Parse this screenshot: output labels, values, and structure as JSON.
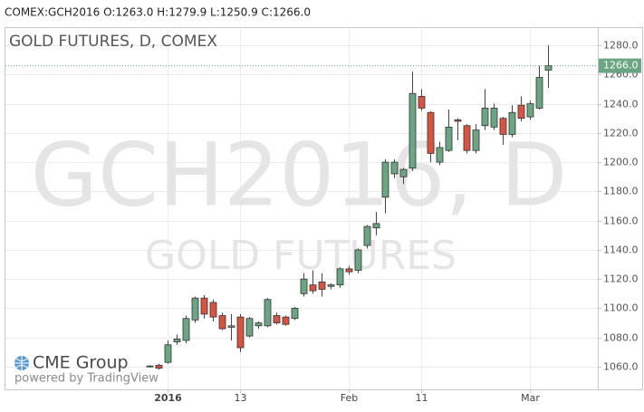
{
  "header": "COMEX:GCH2016 O:1263.0 H:1279.9 L:1250.9 C:1266.0",
  "branding": {
    "logo": "CME Group",
    "powered": "powered by TradingView"
  },
  "chart_data": {
    "type": "candlestick",
    "title": "GOLD FUTURES, D, COMEX",
    "watermark": [
      "GCH2016, D",
      "GOLD FUTURES"
    ],
    "categories": [
      null,
      null,
      "2016",
      null,
      null,
      null,
      null,
      null,
      null,
      null,
      "13",
      null,
      null,
      null,
      null,
      null,
      null,
      null,
      null,
      null,
      null,
      null,
      "Feb",
      null,
      null,
      null,
      null,
      null,
      null,
      null,
      "11",
      null,
      null,
      null,
      null,
      null,
      null,
      null,
      null,
      null,
      null,
      null,
      "Mar",
      null,
      null
    ],
    "series": [
      {
        "up_color": "#6ba583",
        "down_color": "#d75442",
        "open": [
          1060,
          1061,
          1063,
          1077,
          1078,
          1092,
          1107,
          1104,
          1095,
          1087,
          1094,
          1081,
          1088,
          1088,
          1095,
          1094,
          1093,
          1110,
          1116,
          1118,
          1115,
          1116,
          1127,
          1126,
          1143,
          1155,
          1176,
          1192,
          1190,
          1196,
          1245,
          1234,
          1200,
          1208,
          1229,
          1225,
          1208,
          1225,
          1224,
          1230,
          1219,
          1239,
          1231,
          1237,
          1263
        ],
        "high": [
          1061,
          1062,
          1078,
          1082,
          1095,
          1108,
          1109,
          1106,
          1097,
          1096,
          1096,
          1094,
          1091,
          1107,
          1097,
          1095,
          1101,
          1124,
          1126,
          1124,
          1117,
          1128,
          1129,
          1141,
          1157,
          1166,
          1202,
          1202,
          1196,
          1262,
          1250,
          1235,
          1214,
          1236,
          1230,
          1226,
          1226,
          1250,
          1240,
          1231,
          1239,
          1245,
          1242,
          1266,
          1279.9
        ],
        "low": [
          1059.5,
          1058,
          1062,
          1075,
          1076,
          1090,
          1093,
          1091,
          1085,
          1078,
          1070,
          1080,
          1086,
          1087,
          1089,
          1088,
          1092,
          1108,
          1110,
          1108,
          1113,
          1114,
          1123,
          1124,
          1141,
          1150,
          1165,
          1189,
          1185,
          1194,
          1235,
          1200,
          1198,
          1207,
          1215,
          1206,
          1206,
          1222,
          1222,
          1212,
          1217,
          1228,
          1229,
          1236,
          1250.9
        ],
        "close": [
          1060.5,
          1059,
          1075,
          1079,
          1093,
          1107,
          1096,
          1094,
          1086,
          1088,
          1073,
          1093,
          1090,
          1106,
          1090,
          1089,
          1100,
          1120,
          1112,
          1113,
          1116,
          1127,
          1125,
          1140,
          1156,
          1158,
          1200,
          1200,
          1195,
          1247,
          1237,
          1206,
          1210,
          1224,
          1228,
          1208,
          1222,
          1237,
          1237,
          1219,
          1234,
          1230,
          1240,
          1258,
          1266
        ]
      }
    ],
    "last_price": {
      "value": 1266,
      "label": "1266.0"
    },
    "last_price_color": "#6ba583",
    "ylim": [
      1044.5,
      1292.4
    ],
    "yticks": [
      {
        "value": 1060,
        "label": "1060.0"
      },
      {
        "value": 1080,
        "label": "1080.0"
      },
      {
        "value": 1100,
        "label": "1100.0"
      },
      {
        "value": 1120,
        "label": "1120.0"
      },
      {
        "value": 1140,
        "label": "1140.0"
      },
      {
        "value": 1160,
        "label": "1160.0"
      },
      {
        "value": 1180,
        "label": "1180.0"
      },
      {
        "value": 1200,
        "label": "1200.0"
      },
      {
        "value": 1220,
        "label": "1220.0"
      },
      {
        "value": 1240,
        "label": "1240.0"
      },
      {
        "value": 1260,
        "label": "1260.0"
      },
      {
        "value": 1280,
        "label": "1280.0"
      }
    ],
    "grid": true
  }
}
